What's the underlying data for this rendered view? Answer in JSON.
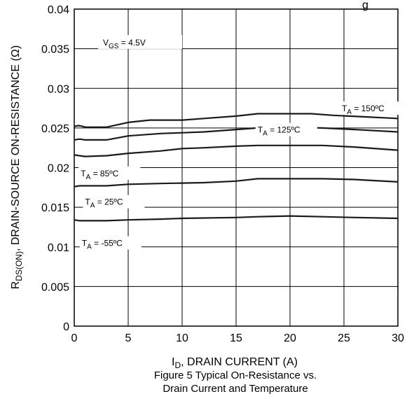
{
  "chart_data": {
    "type": "line",
    "xlabel_main": "I",
    "xlabel_sub": "D",
    "xlabel_rest": ", DRAIN CURRENT (A)",
    "ylabel_main": "R",
    "ylabel_sub": "DS(ON)",
    "ylabel_rest": ", DRAIN-SOURCE ON-RESISTANCE (Ω)",
    "xlim": [
      0,
      30
    ],
    "ylim": [
      0,
      0.04
    ],
    "x_ticks": [
      "0",
      "5",
      "10",
      "15",
      "20",
      "25",
      "30"
    ],
    "y_ticks": [
      "0",
      "0.005",
      "0.01",
      "0.015",
      "0.02",
      "0.025",
      "0.03",
      "0.035",
      "0.04"
    ],
    "grid": true,
    "vgs_annotation": {
      "main": "V",
      "sub": "GS",
      "rest": " = 4.5V",
      "y": 0.0355
    },
    "series": [
      {
        "name": "T_A = 150ºC",
        "label_main": "T",
        "label_sub": "A",
        "label_rest": " = 150ºC",
        "label_at": [
          24.8,
          0.0271
        ],
        "points": [
          [
            0,
            0.0252
          ],
          [
            0.4,
            0.0253
          ],
          [
            0.8,
            0.0252
          ],
          [
            1,
            0.0251
          ],
          [
            3,
            0.0251
          ],
          [
            5,
            0.0257
          ],
          [
            7,
            0.026
          ],
          [
            10,
            0.026
          ],
          [
            12,
            0.0262
          ],
          [
            15,
            0.0265
          ],
          [
            17,
            0.0268
          ],
          [
            20,
            0.0268
          ],
          [
            22,
            0.0268
          ],
          [
            24,
            0.0266
          ],
          [
            27,
            0.0264
          ],
          [
            30,
            0.0262
          ]
        ]
      },
      {
        "name": "T_A = 125ºC",
        "label_main": "T",
        "label_sub": "A",
        "label_rest": " = 125ºC",
        "label_at": [
          17,
          0.0244
        ],
        "points": [
          [
            0,
            0.0235
          ],
          [
            0.5,
            0.0236
          ],
          [
            1,
            0.0235
          ],
          [
            3,
            0.0235
          ],
          [
            5,
            0.024
          ],
          [
            8,
            0.0243
          ],
          [
            10,
            0.0244
          ],
          [
            12,
            0.0245
          ],
          [
            15,
            0.0248
          ],
          [
            18,
            0.0251
          ],
          [
            20,
            0.0251
          ],
          [
            23,
            0.025
          ],
          [
            26,
            0.0248
          ],
          [
            30,
            0.0245
          ]
        ]
      },
      {
        "name": "T_A = 85ºC",
        "label_main": "T",
        "label_sub": "A",
        "label_rest": " = 85ºC",
        "label_at": [
          0.6,
          0.0189
        ],
        "points": [
          [
            0,
            0.0216
          ],
          [
            0.5,
            0.0215
          ],
          [
            1,
            0.0214
          ],
          [
            3,
            0.0215
          ],
          [
            5,
            0.0218
          ],
          [
            8,
            0.0221
          ],
          [
            10,
            0.0224
          ],
          [
            12,
            0.0225
          ],
          [
            15,
            0.0227
          ],
          [
            17,
            0.0228
          ],
          [
            20,
            0.0228
          ],
          [
            23,
            0.0228
          ],
          [
            26,
            0.0226
          ],
          [
            30,
            0.0222
          ]
        ]
      },
      {
        "name": "T_A = 25ºC",
        "label_main": "T",
        "label_sub": "A",
        "label_rest": " = 25ºC",
        "label_at": [
          1,
          0.0153
        ],
        "points": [
          [
            0,
            0.0176
          ],
          [
            0.5,
            0.0177
          ],
          [
            3,
            0.0177
          ],
          [
            5,
            0.0179
          ],
          [
            8,
            0.018
          ],
          [
            12,
            0.0181
          ],
          [
            15,
            0.0183
          ],
          [
            17,
            0.0186
          ],
          [
            20,
            0.0186
          ],
          [
            23,
            0.0186
          ],
          [
            26,
            0.0185
          ],
          [
            30,
            0.0182
          ]
        ]
      },
      {
        "name": "T_A = -55ºC",
        "label_main": "T",
        "label_sub": "A",
        "label_rest": " = -55ºC",
        "label_at": [
          0.7,
          0.0101
        ],
        "points": [
          [
            0,
            0.0134
          ],
          [
            0.5,
            0.0133
          ],
          [
            3,
            0.0133
          ],
          [
            5,
            0.0134
          ],
          [
            8,
            0.0135
          ],
          [
            10,
            0.0136
          ],
          [
            15,
            0.0137
          ],
          [
            17,
            0.0138
          ],
          [
            20,
            0.0139
          ],
          [
            23,
            0.0138
          ],
          [
            26,
            0.0137
          ],
          [
            30,
            0.0136
          ]
        ]
      }
    ],
    "title_partial": "g",
    "line_color": "#1a1a1a"
  },
  "caption": {
    "line1": "Figure 5 Typical On-Resistance vs.",
    "line2": "Drain Current and Temperature"
  }
}
